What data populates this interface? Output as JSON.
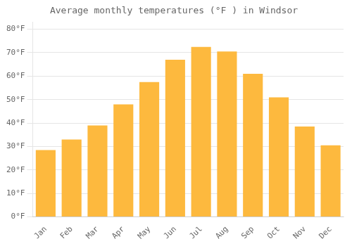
{
  "chart_data": {
    "type": "bar",
    "title": "Average monthly temperatures (°F ) in Windsor",
    "categories": [
      "Jan",
      "Feb",
      "Mar",
      "Apr",
      "May",
      "Jun",
      "Jul",
      "Aug",
      "Sep",
      "Oct",
      "Nov",
      "Dec"
    ],
    "values": [
      28.5,
      33.0,
      39.0,
      48.0,
      57.5,
      67.0,
      72.5,
      70.5,
      61.0,
      51.0,
      38.5,
      30.5
    ],
    "color": "#FDB93E",
    "ylim": [
      0,
      83
    ],
    "yticks": [
      {
        "value": 0,
        "label": "0°F"
      },
      {
        "value": 10,
        "label": "10°F"
      },
      {
        "value": 20,
        "label": "20°F"
      },
      {
        "value": 30,
        "label": "30°F"
      },
      {
        "value": 40,
        "label": "40°F"
      },
      {
        "value": 50,
        "label": "50°F"
      },
      {
        "value": 60,
        "label": "60°F"
      },
      {
        "value": 70,
        "label": "70°F"
      },
      {
        "value": 80,
        "label": "80°F"
      }
    ],
    "grid": true
  }
}
